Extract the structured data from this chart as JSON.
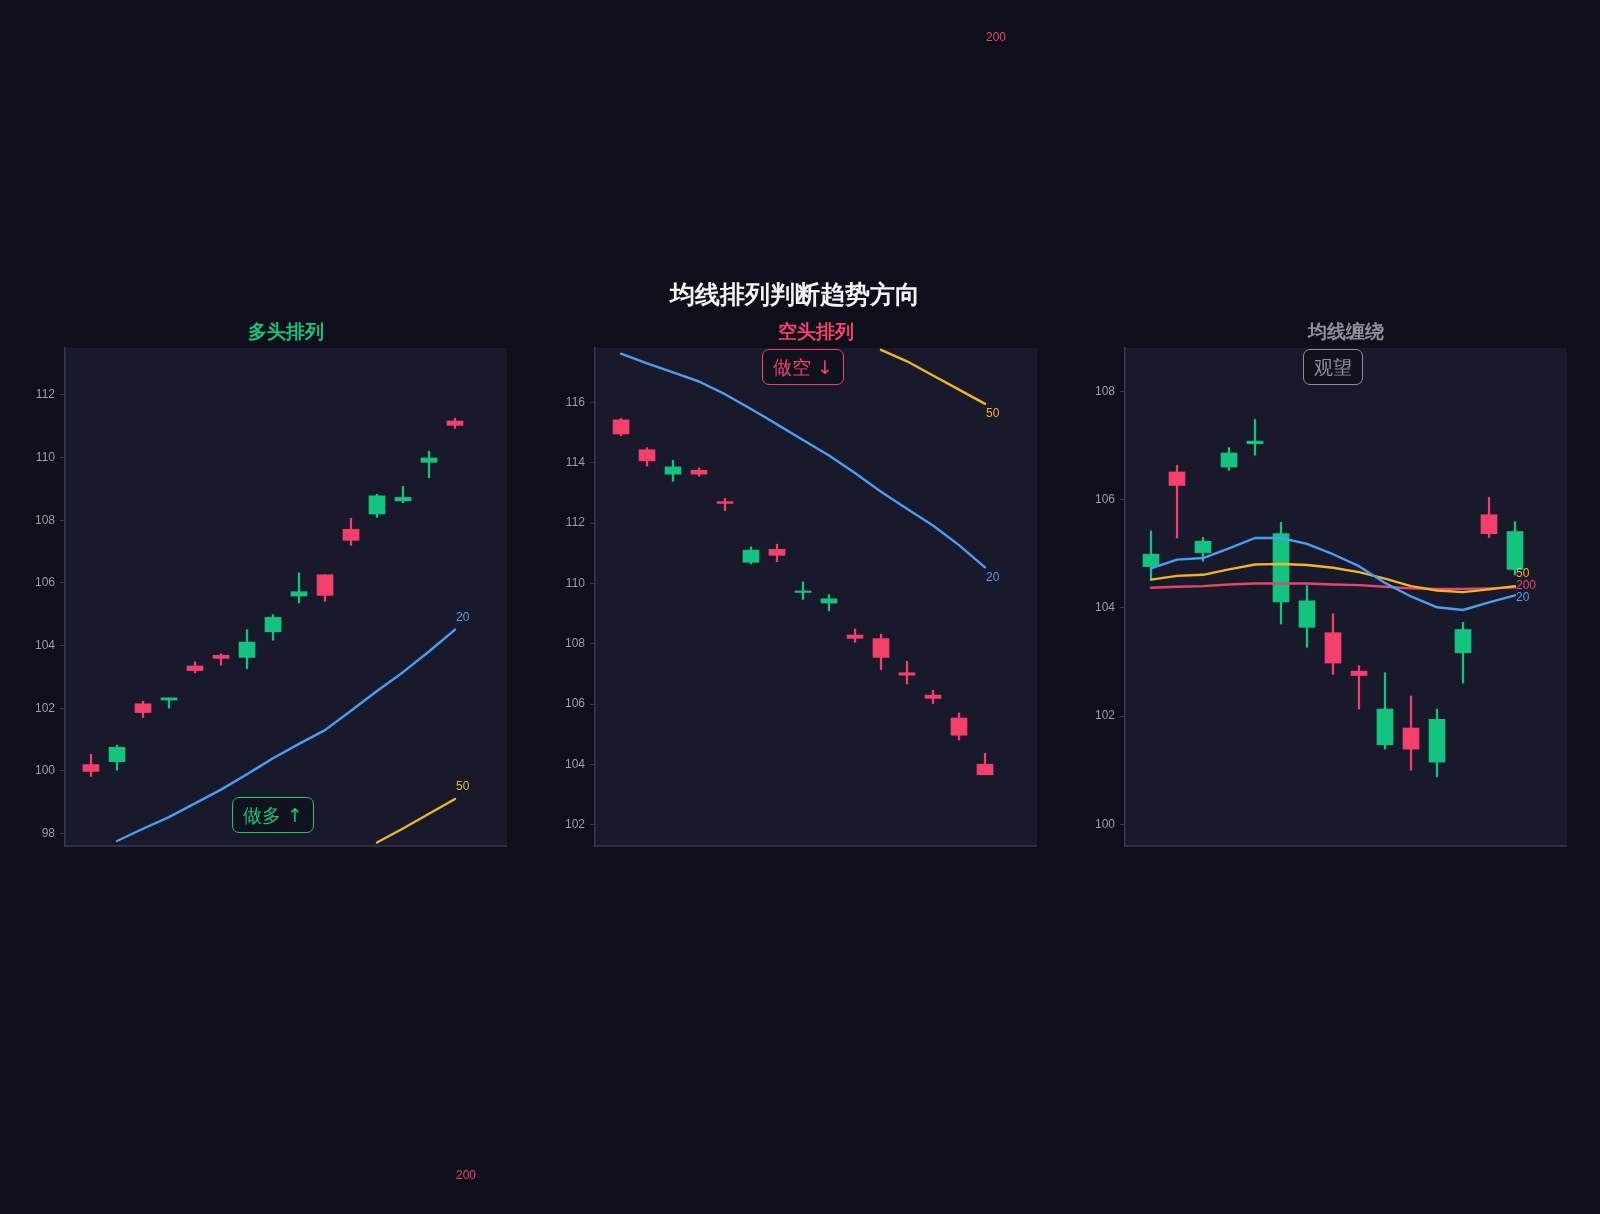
{
  "chart_data": [
    {
      "type": "candlestick",
      "subtitle": "多头排列",
      "categories": [
        null,
        null,
        null,
        null,
        null,
        null,
        null,
        null,
        null,
        null,
        null,
        null,
        null,
        null,
        null
      ],
      "ohlc": [
        [
          100.2,
          100.53,
          99.82,
          99.98
        ],
        [
          100.29,
          100.82,
          100.02,
          100.75
        ],
        [
          102.14,
          102.22,
          101.7,
          101.86
        ],
        [
          102.26,
          102.33,
          102.0,
          102.33
        ],
        [
          103.35,
          103.48,
          103.13,
          103.2
        ],
        [
          103.69,
          103.74,
          103.37,
          103.59
        ],
        [
          103.62,
          104.51,
          103.26,
          104.11
        ],
        [
          104.44,
          104.99,
          104.17,
          104.9
        ],
        [
          105.58,
          106.32,
          105.36,
          105.72
        ],
        [
          106.26,
          106.26,
          105.41,
          105.6
        ],
        [
          107.71,
          108.06,
          107.2,
          107.36
        ],
        [
          108.2,
          108.83,
          108.09,
          108.78
        ],
        [
          108.62,
          109.08,
          108.56,
          108.73
        ],
        [
          109.85,
          110.2,
          109.36,
          109.99
        ],
        [
          111.17,
          111.26,
          110.93,
          111.03
        ]
      ],
      "colors": [
        "#f43f6b",
        "#12c47e",
        "#f43f6b",
        "#12c47e",
        "#f43f6b",
        "#f43f6b",
        "#12c47e",
        "#12c47e",
        "#12c47e",
        "#f43f6b",
        "#f43f6b",
        "#12c47e",
        "#12c47e",
        "#12c47e",
        "#f43f6b"
      ],
      "series": [
        {
          "type": "line",
          "name": "20",
          "color": "#4a9df5",
          "values": [
            null,
            97.76,
            98.15,
            98.52,
            98.96,
            99.4,
            99.89,
            100.4,
            100.86,
            101.3,
            101.92,
            102.55,
            103.15,
            103.81,
            104.51
          ]
        },
        {
          "type": "line",
          "name": "50",
          "color": "#f0b429",
          "values": [
            null,
            null,
            null,
            null,
            null,
            null,
            null,
            null,
            null,
            null,
            null,
            97.71,
            98.16,
            98.63,
            99.1
          ]
        }
      ],
      "ylim": [
        97.6,
        113.5
      ],
      "yticks": [
        98,
        100,
        102,
        104,
        106,
        108,
        110,
        112
      ],
      "tick_labels": "y",
      "annotations": [
        "做多 ↑",
        "200"
      ]
    },
    {
      "type": "candlestick",
      "title": "均线排列判断趋势方向",
      "subtitle": "空头排列",
      "categories": [
        null,
        null,
        null,
        null,
        null,
        null,
        null,
        null,
        null,
        null,
        null,
        null,
        null,
        null,
        null
      ],
      "ohlc": [
        [
          115.42,
          115.47,
          114.89,
          114.95
        ],
        [
          114.43,
          114.5,
          113.89,
          114.06
        ],
        [
          113.62,
          114.08,
          113.38,
          113.86
        ],
        [
          113.75,
          113.83,
          113.55,
          113.62
        ],
        [
          112.71,
          112.82,
          112.41,
          112.65
        ],
        [
          110.7,
          111.21,
          110.64,
          111.1
        ],
        [
          111.13,
          111.3,
          110.72,
          110.93
        ],
        [
          109.7,
          110.05,
          109.47,
          109.75
        ],
        [
          109.35,
          109.63,
          109.09,
          109.49
        ],
        [
          108.29,
          108.49,
          108.05,
          108.18
        ],
        [
          108.17,
          108.32,
          107.14,
          107.55
        ],
        [
          107.04,
          107.42,
          106.67,
          106.96
        ],
        [
          106.3,
          106.46,
          106.02,
          106.19
        ],
        [
          105.54,
          105.71,
          104.81,
          104.97
        ],
        [
          104.01,
          104.37,
          103.66,
          103.66
        ]
      ],
      "colors": [
        "#f43f6b",
        "#f43f6b",
        "#12c47e",
        "#f43f6b",
        "#f43f6b",
        "#12c47e",
        "#f43f6b",
        "#12c47e",
        "#12c47e",
        "#f43f6b",
        "#f43f6b",
        "#f43f6b",
        "#f43f6b",
        "#f43f6b",
        "#f43f6b"
      ],
      "series": [
        {
          "type": "line",
          "name": "20",
          "color": "#4a9df5",
          "values": [
            117.61,
            117.29,
            116.99,
            116.69,
            116.27,
            115.78,
            115.27,
            114.75,
            114.24,
            113.66,
            113.04,
            112.47,
            111.92,
            111.27,
            110.53
          ]
        },
        {
          "type": "line",
          "name": "50",
          "color": "#f0b429",
          "values": [
            null,
            null,
            null,
            null,
            null,
            null,
            null,
            null,
            null,
            null,
            117.74,
            117.36,
            116.89,
            116.42,
            115.95
          ]
        }
      ],
      "ylim": [
        101.3,
        117.8
      ],
      "yticks": [
        102,
        104,
        106,
        108,
        110,
        112,
        114,
        116
      ],
      "tick_labels": "y",
      "annotations": [
        "做空 ↓",
        "200"
      ]
    },
    {
      "type": "candlestick",
      "subtitle": "均线缠绕",
      "categories": [
        null,
        null,
        null,
        null,
        null,
        null,
        null,
        null,
        null,
        null,
        null,
        null,
        null,
        null,
        null
      ],
      "ohlc": [
        [
          104.76,
          105.42,
          104.54,
          104.99
        ],
        [
          106.51,
          106.63,
          105.29,
          106.26
        ],
        [
          105.02,
          105.3,
          104.86,
          105.23
        ],
        [
          106.6,
          106.96,
          106.54,
          106.86
        ],
        [
          107.03,
          107.48,
          106.82,
          107.08
        ],
        [
          104.11,
          105.58,
          103.7,
          105.37
        ],
        [
          103.64,
          104.41,
          103.27,
          104.13
        ],
        [
          103.54,
          103.89,
          102.77,
          102.98
        ],
        [
          102.83,
          102.93,
          102.13,
          102.75
        ],
        [
          101.47,
          102.8,
          101.39,
          102.13
        ],
        [
          101.78,
          102.37,
          101.0,
          101.39
        ],
        [
          101.15,
          102.13,
          100.88,
          101.94
        ],
        [
          103.17,
          103.73,
          102.61,
          103.6
        ],
        [
          105.72,
          106.04,
          105.3,
          105.37
        ],
        [
          104.71,
          105.59,
          104.61,
          105.41
        ]
      ],
      "colors": [
        "#12c47e",
        "#f43f6b",
        "#12c47e",
        "#12c47e",
        "#12c47e",
        "#12c47e",
        "#12c47e",
        "#f43f6b",
        "#f43f6b",
        "#12c47e",
        "#f43f6b",
        "#12c47e",
        "#12c47e",
        "#f43f6b",
        "#12c47e"
      ],
      "series": [
        {
          "type": "line",
          "name": "20",
          "color": "#4a9df5",
          "values": [
            104.73,
            104.89,
            104.92,
            105.1,
            105.29,
            105.29,
            105.18,
            104.99,
            104.77,
            104.46,
            104.21,
            104.01,
            103.96,
            104.1,
            104.23
          ]
        },
        {
          "type": "line",
          "name": "50",
          "color": "#f0b429",
          "values": [
            104.52,
            104.59,
            104.61,
            104.71,
            104.8,
            104.81,
            104.79,
            104.74,
            104.66,
            104.54,
            104.4,
            104.32,
            104.29,
            104.34,
            104.4
          ]
        },
        {
          "type": "line",
          "name": "200",
          "color": "#e8456d",
          "values": [
            104.37,
            104.39,
            104.4,
            104.43,
            104.45,
            104.45,
            104.45,
            104.43,
            104.42,
            104.39,
            104.36,
            104.35,
            104.35,
            104.36,
            104.38
          ]
        }
      ],
      "ylim": [
        99.6,
        108.8
      ],
      "yticks": [
        100,
        102,
        104,
        106,
        108
      ],
      "tick_labels": "y",
      "annotations": [
        "观望"
      ]
    }
  ]
}
